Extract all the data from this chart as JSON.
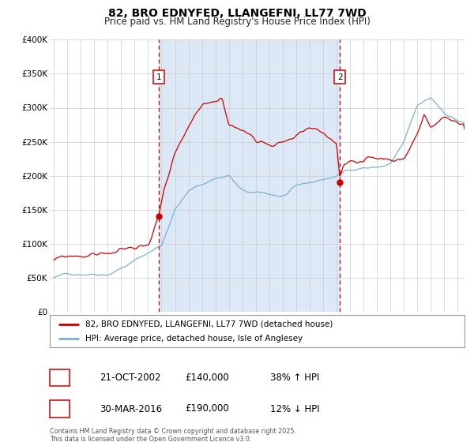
{
  "title": "82, BRO EDNYFED, LLANGEFNI, LL77 7WD",
  "subtitle": "Price paid vs. HM Land Registry's House Price Index (HPI)",
  "ylim": [
    0,
    400000
  ],
  "yticks": [
    0,
    50000,
    100000,
    150000,
    200000,
    250000,
    300000,
    350000,
    400000
  ],
  "ytick_labels": [
    "£0",
    "£50K",
    "£100K",
    "£150K",
    "£200K",
    "£250K",
    "£300K",
    "£350K",
    "£400K"
  ],
  "xlim_start": 1994.7,
  "xlim_end": 2025.5,
  "plot_bg_color": "#ffffff",
  "shade_color": "#dce8f5",
  "grid_color": "#cccccc",
  "red_line_color": "#cc0000",
  "blue_line_color": "#7ab0d4",
  "vline_color": "#cc0000",
  "marker1_x": 2002.79,
  "marker2_x": 2016.24,
  "marker1_y": 140000,
  "marker2_y": 190000,
  "shade_xmin": 2002.79,
  "shade_xmax": 2016.24,
  "legend_label_red": "82, BRO EDNYFED, LLANGEFNI, LL77 7WD (detached house)",
  "legend_label_blue": "HPI: Average price, detached house, Isle of Anglesey",
  "table_row1": [
    "1",
    "21-OCT-2002",
    "£140,000",
    "38% ↑ HPI"
  ],
  "table_row2": [
    "2",
    "30-MAR-2016",
    "£190,000",
    "12% ↓ HPI"
  ],
  "footnote": "Contains HM Land Registry data © Crown copyright and database right 2025.\nThis data is licensed under the Open Government Licence v3.0.",
  "title_fontsize": 10,
  "subtitle_fontsize": 8.5,
  "tick_fontsize": 7.5,
  "legend_fontsize": 7.5,
  "table_fontsize": 8.5,
  "footnote_fontsize": 5.8
}
